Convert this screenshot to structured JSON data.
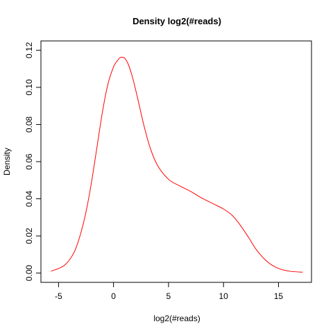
{
  "chart_data": {
    "type": "line",
    "title": "Density log2(#reads)",
    "xlabel": "log2(#reads)",
    "ylabel": "Density",
    "xlim": [
      -6.6,
      18
    ],
    "ylim": [
      -0.005,
      0.125
    ],
    "x_ticks": [
      -5,
      0,
      5,
      10,
      15
    ],
    "x_tick_labels": [
      "-5",
      "0",
      "5",
      "10",
      "15"
    ],
    "y_ticks": [
      0.0,
      0.02,
      0.04,
      0.06,
      0.08,
      0.1,
      0.12
    ],
    "y_tick_labels": [
      "0.00",
      "0.02",
      "0.04",
      "0.06",
      "0.08",
      "0.10",
      "0.12"
    ],
    "grid": false,
    "legend": "none",
    "series": [
      {
        "name": "density",
        "color": "#ff0000",
        "x": [
          -5.7,
          -4.5,
          -3.6,
          -3.0,
          -2.5,
          -2.0,
          -1.5,
          -1.0,
          -0.5,
          0.0,
          0.3,
          0.6,
          0.8,
          1.0,
          1.3,
          1.7,
          2.2,
          2.7,
          3.3,
          4.0,
          5.0,
          6.0,
          7.0,
          8.0,
          9.0,
          10.0,
          10.8,
          11.5,
          12.3,
          13.0,
          14.0,
          15.0,
          16.0,
          17.2
        ],
        "y": [
          0.001,
          0.004,
          0.011,
          0.021,
          0.033,
          0.049,
          0.068,
          0.087,
          0.102,
          0.111,
          0.114,
          0.116,
          0.1162,
          0.1158,
          0.113,
          0.106,
          0.094,
          0.081,
          0.068,
          0.058,
          0.0505,
          0.047,
          0.044,
          0.0405,
          0.0375,
          0.0345,
          0.031,
          0.026,
          0.019,
          0.0125,
          0.006,
          0.0025,
          0.001,
          0.0005
        ]
      }
    ]
  }
}
